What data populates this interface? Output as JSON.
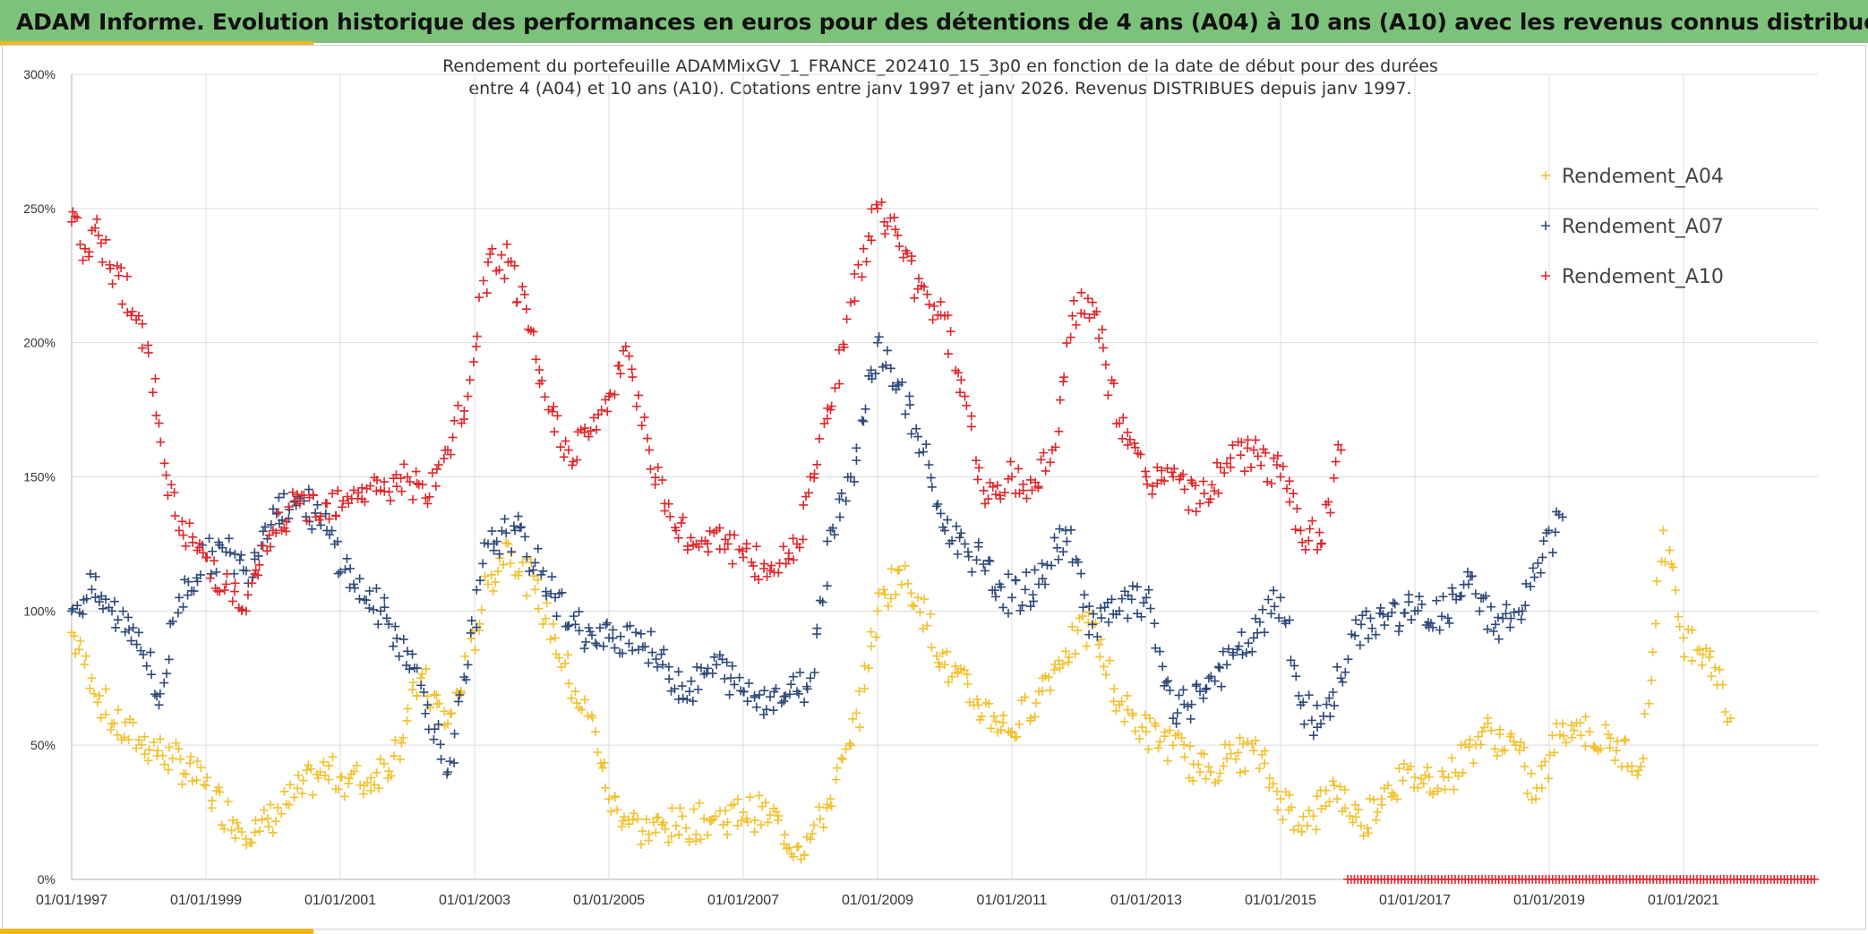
{
  "header": {
    "title": "ADAM Informe. Evolution historique des performances en euros pour des détentions de 4 ans (A04) à 10 ans (A10) avec les revenus connus distribués"
  },
  "colors": {
    "header_bg": "#7dc27a",
    "accent": "#f2b51c",
    "A04": "#f2c12e",
    "A07": "#2f4a7a",
    "A10": "#e0262b"
  },
  "chart_data": {
    "type": "scatter",
    "title_line1": "Rendement du portefeuille ADAMMixGV_1_FRANCE_202410_15_3p0  en fonction de la date de début pour des durées",
    "title_line2": "entre 4 (A04) et 10 ans (A10). Cotations entre janv 1997 et janv 2026. Revenus DISTRIBUES depuis janv 1997.",
    "xlabel": "",
    "ylabel": "",
    "x_ticks": [
      "01/01/1997",
      "01/01/1999",
      "01/01/2001",
      "01/01/2003",
      "01/01/2005",
      "01/01/2007",
      "01/01/2009",
      "01/01/2011",
      "01/01/2013",
      "01/01/2015",
      "01/01/2017",
      "01/01/2019",
      "01/01/2021"
    ],
    "xlim": [
      "01/01/1997",
      "01/01/2023"
    ],
    "y_ticks": [
      "0%",
      "50%",
      "100%",
      "150%",
      "200%",
      "250%",
      "300%"
    ],
    "ylim": [
      0,
      300
    ],
    "grid": true,
    "legend_position": "right",
    "series": [
      {
        "name": "Rendement_A04",
        "color": "#f2c12e",
        "x": [
          1997.0,
          1997.3,
          1997.6,
          1998.0,
          1998.5,
          1999.0,
          1999.4,
          1999.8,
          2000.2,
          2000.7,
          2001.0,
          2001.4,
          2001.8,
          2002.2,
          2002.6,
          2002.9,
          2003.2,
          2003.5,
          2003.9,
          2004.2,
          2004.5,
          2004.8,
          2005.0,
          2005.5,
          2006.0,
          2006.5,
          2007.0,
          2007.4,
          2007.8,
          2008.0,
          2008.3,
          2008.6,
          2009.0,
          2009.3,
          2009.6,
          2010.0,
          2010.5,
          2011.0,
          2011.4,
          2011.8,
          2012.2,
          2012.6,
          2013.0,
          2013.4,
          2013.8,
          2014.2,
          2014.6,
          2015.0,
          2015.4,
          2015.8,
          2016.2,
          2016.6,
          2017.0,
          2017.5,
          2018.0,
          2018.5,
          2018.8,
          2019.2,
          2019.6,
          2020.0,
          2020.4,
          2020.7,
          2021.0,
          2021.4,
          2021.7
        ],
        "y": [
          92,
          75,
          58,
          52,
          45,
          35,
          22,
          18,
          28,
          40,
          38,
          36,
          46,
          75,
          58,
          80,
          110,
          125,
          108,
          90,
          70,
          55,
          30,
          18,
          20,
          22,
          25,
          24,
          12,
          15,
          30,
          50,
          100,
          115,
          105,
          80,
          65,
          55,
          70,
          85,
          95,
          65,
          55,
          50,
          40,
          45,
          48,
          30,
          20,
          35,
          20,
          35,
          38,
          38,
          55,
          50,
          30,
          58,
          55,
          48,
          45,
          130,
          90,
          85,
          60
        ],
        "label_points": true
      },
      {
        "name": "Rendement_A07",
        "color": "#2f4a7a",
        "x": [
          1997.0,
          1997.3,
          1997.6,
          1998.0,
          1998.3,
          1998.6,
          1999.0,
          1999.3,
          1999.6,
          2000.0,
          2000.4,
          2000.8,
          2001.2,
          2001.6,
          2002.0,
          2002.3,
          2002.6,
          2002.9,
          2003.2,
          2003.6,
          2003.9,
          2004.2,
          2004.5,
          2004.8,
          2005.0,
          2005.4,
          2005.8,
          2006.2,
          2006.6,
          2007.0,
          2007.4,
          2007.8,
          2008.0,
          2008.3,
          2008.6,
          2009.0,
          2009.3,
          2009.6,
          2010.0,
          2010.3,
          2010.6,
          2011.0,
          2011.4,
          2011.8,
          2012.2,
          2012.6,
          2013.0,
          2013.4,
          2013.8,
          2014.2,
          2014.6,
          2015.0,
          2015.3,
          2015.6,
          2015.9,
          2016.2,
          2016.6,
          2017.0,
          2017.4,
          2017.8,
          2018.2,
          2018.6,
          2018.9,
          2019.2
        ],
        "y": [
          100,
          108,
          100,
          92,
          65,
          105,
          120,
          122,
          115,
          138,
          142,
          130,
          110,
          100,
          85,
          65,
          40,
          80,
          125,
          130,
          118,
          105,
          95,
          88,
          90,
          92,
          80,
          70,
          80,
          70,
          68,
          70,
          75,
          130,
          150,
          200,
          185,
          165,
          130,
          125,
          115,
          105,
          110,
          130,
          95,
          100,
          105,
          60,
          70,
          80,
          90,
          105,
          65,
          58,
          75,
          95,
          98,
          100,
          98,
          110,
          95,
          100,
          120,
          135
        ]
      },
      {
        "name": "Rendement_A10",
        "color": "#e0262b",
        "x": [
          1997.0,
          1997.2,
          1997.4,
          1997.7,
          1998.0,
          1998.3,
          1998.6,
          1999.0,
          1999.3,
          1999.6,
          2000.0,
          2000.4,
          2000.8,
          2001.2,
          2001.6,
          2002.0,
          2002.3,
          2002.6,
          2002.9,
          2003.2,
          2003.5,
          2003.8,
          2004.1,
          2004.4,
          2004.7,
          2005.0,
          2005.3,
          2005.6,
          2006.0,
          2006.3,
          2006.6,
          2007.0,
          2007.4,
          2007.8,
          2008.0,
          2008.3,
          2008.6,
          2009.0,
          2009.3,
          2009.6,
          2010.0,
          2010.3,
          2010.6,
          2011.0,
          2011.3,
          2011.6,
          2011.9,
          2012.2,
          2012.6,
          2013.0,
          2013.4,
          2013.8,
          2014.2,
          2014.6,
          2015.0,
          2015.3,
          2015.6,
          2015.9
        ],
        "y": [
          245,
          235,
          240,
          225,
          210,
          170,
          130,
          120,
          110,
          100,
          130,
          140,
          140,
          145,
          145,
          150,
          140,
          160,
          180,
          230,
          230,
          205,
          175,
          160,
          165,
          180,
          195,
          160,
          130,
          125,
          130,
          120,
          115,
          125,
          150,
          175,
          215,
          250,
          240,
          220,
          210,
          180,
          140,
          150,
          145,
          160,
          210,
          215,
          170,
          150,
          150,
          140,
          155,
          160,
          150,
          130,
          125,
          160
        ]
      }
    ],
    "extra_series_note_band": "zero-line red markers from 2016 to 2023"
  }
}
